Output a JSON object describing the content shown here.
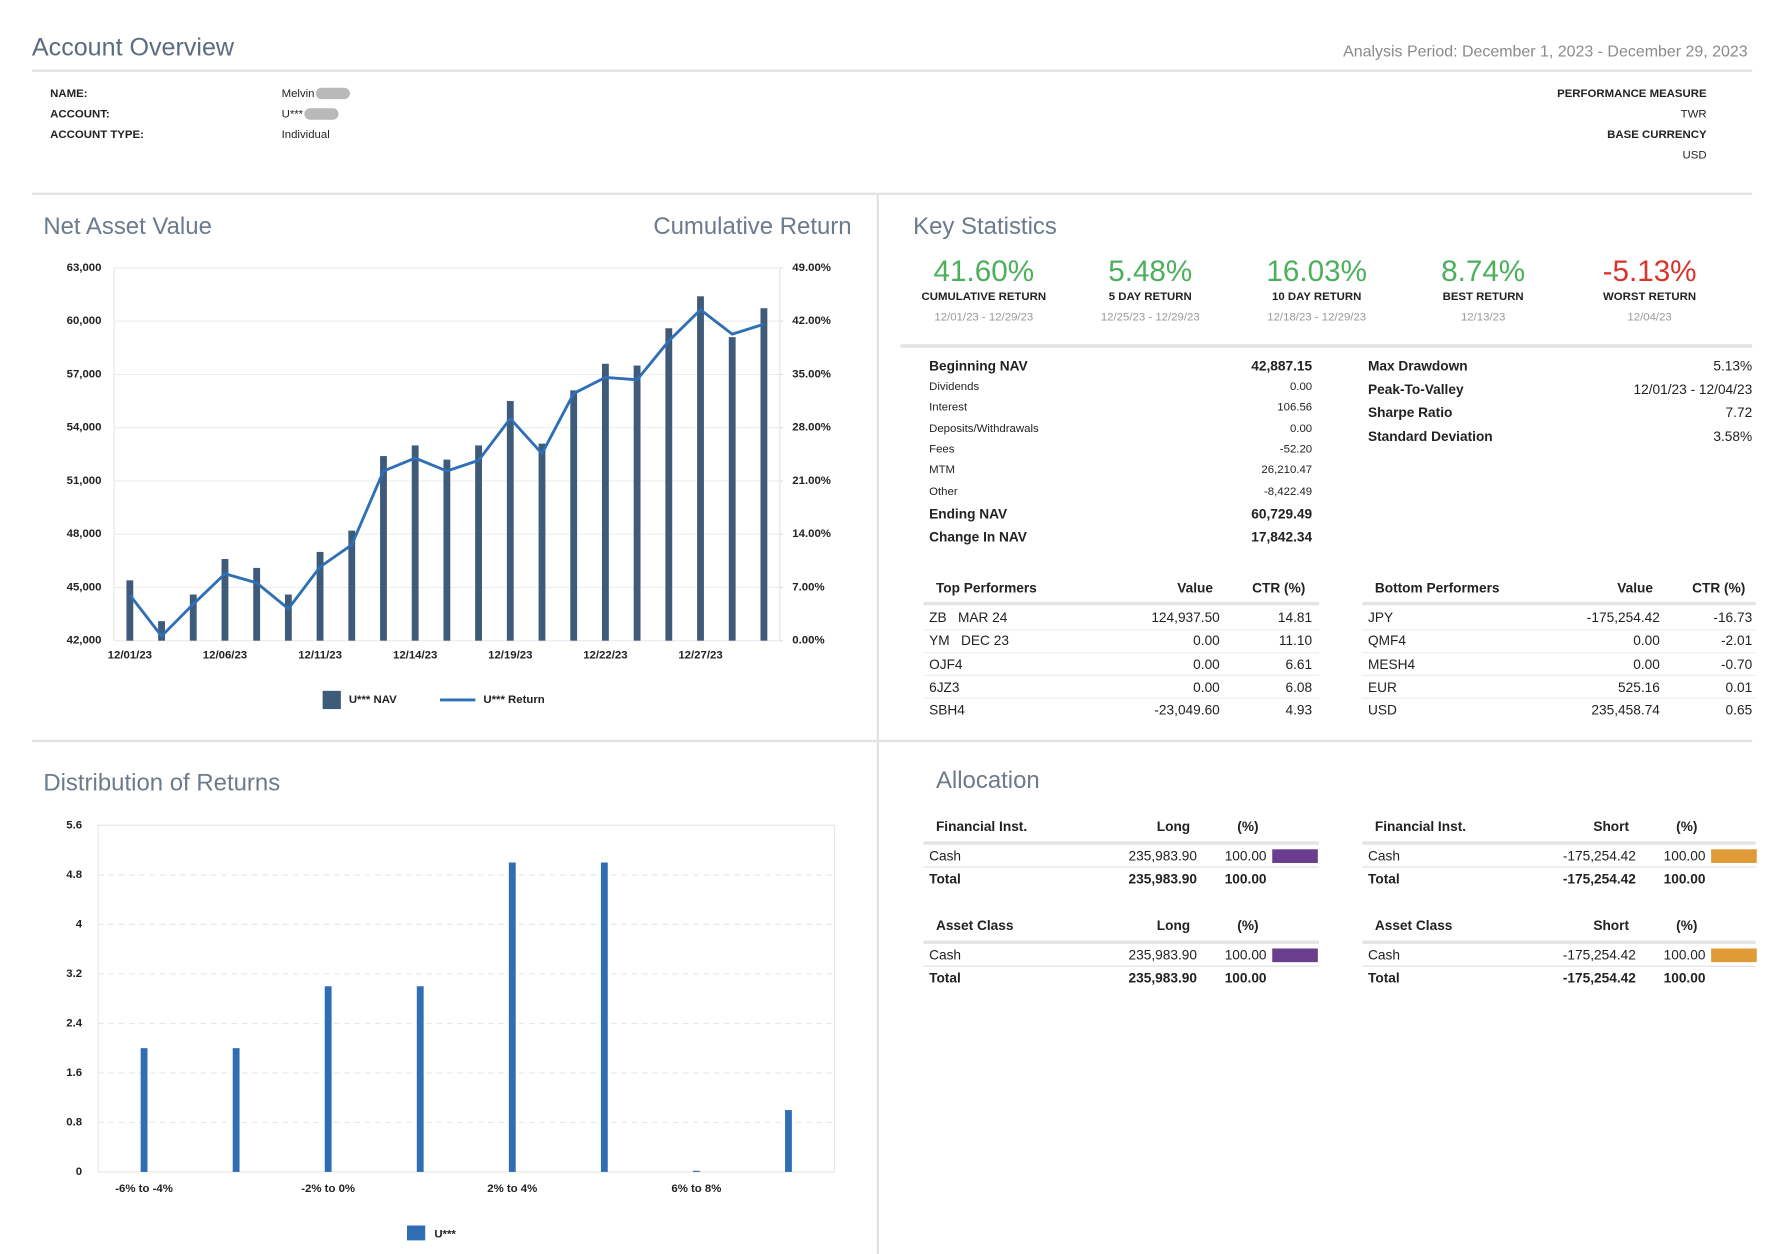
{
  "header": {
    "title": "Account Overview",
    "analysis_period": "Analysis Period: December 1, 2023 - December 29, 2023"
  },
  "account_info": {
    "fields": [
      {
        "label": "NAME:",
        "value": "Melvin"
      },
      {
        "label": "ACCOUNT:",
        "value": "U***"
      },
      {
        "label": "ACCOUNT TYPE:",
        "value": "Individual"
      }
    ],
    "right_fields": [
      {
        "label": "PERFORMANCE MEASURE",
        "value": "TWR"
      },
      {
        "label": "BASE CURRENCY",
        "value": "USD"
      }
    ]
  },
  "chart_data": [
    {
      "type": "bar_line",
      "title": "Net Asset Value",
      "y2_label": "Cumulative Return",
      "categories": [
        "12/01/23",
        null,
        null,
        "12/06/23",
        null,
        null,
        "12/11/23",
        null,
        null,
        "12/14/23",
        null,
        null,
        "12/19/23",
        null,
        null,
        "12/22/23",
        null,
        null,
        "12/27/23",
        null,
        null
      ],
      "series": [
        {
          "name": "U*** NAV",
          "color": "#3f5b7a",
          "values": [
            45400,
            43100,
            44600,
            46600,
            46100,
            44600,
            47000,
            48200,
            52400,
            53000,
            52200,
            53000,
            55500,
            53100,
            56100,
            57600,
            57500,
            59600,
            61400,
            59100,
            60729.49
          ]
        },
        {
          "name": "U*** Return",
          "color": "#2e6fb5",
          "axis": "y2",
          "values": [
            6.0,
            0.6,
            4.8,
            8.8,
            7.6,
            4.2,
            9.7,
            12.6,
            22.3,
            24.0,
            22.3,
            23.7,
            29.2,
            24.6,
            32.5,
            34.6,
            34.3,
            39.4,
            43.5,
            40.3,
            41.6
          ]
        }
      ],
      "ylim": [
        42000,
        63000
      ],
      "yticks": [
        {
          "value": 42000,
          "label": "42,000"
        },
        {
          "value": 45000,
          "label": "45,000"
        },
        {
          "value": 48000,
          "label": "48,000"
        },
        {
          "value": 51000,
          "label": "51,000"
        },
        {
          "value": 54000,
          "label": "54,000"
        },
        {
          "value": 57000,
          "label": "57,000"
        },
        {
          "value": 60000,
          "label": "60,000"
        },
        {
          "value": 63000,
          "label": "63,000"
        }
      ],
      "y2lim": [
        0,
        49
      ],
      "y2ticks": [
        {
          "value": 0,
          "label": "0.00%"
        },
        {
          "value": 7,
          "label": "7.00%"
        },
        {
          "value": 14,
          "label": "14.00%"
        },
        {
          "value": 21,
          "label": "21.00%"
        },
        {
          "value": 28,
          "label": "28.00%"
        },
        {
          "value": 35,
          "label": "35.00%"
        },
        {
          "value": 42,
          "label": "42.00%"
        },
        {
          "value": 49,
          "label": "49.00%"
        }
      ],
      "grid": true
    },
    {
      "type": "bar",
      "title": "Distribution of Returns",
      "categories": [
        "-6% to -4%",
        null,
        "-2% to 0%",
        null,
        "2% to 4%",
        null,
        "6% to 8%",
        null
      ],
      "series": [
        {
          "name": "U***",
          "color": "#2f6db5",
          "values": [
            2,
            2,
            3,
            3,
            5,
            5,
            0,
            1
          ]
        }
      ],
      "ylim": [
        0,
        5.6
      ],
      "yticks": [
        0,
        0.8,
        1.6,
        2.4,
        3.2,
        4,
        4.8,
        5.6
      ],
      "grid": true,
      "negative_label_color": "#e0531f",
      "positive_label_color": "#2e8b3e"
    }
  ],
  "key_statistics": {
    "title": "Key Statistics",
    "headline": [
      {
        "value": "41.60%",
        "label": "CUMULATIVE RETURN",
        "period": "12/01/23 - 12/29/23",
        "color": "#4caf5a"
      },
      {
        "value": "5.48%",
        "label": "5 DAY RETURN",
        "period": "12/25/23 - 12/29/23",
        "color": "#4caf5a"
      },
      {
        "value": "16.03%",
        "label": "10 DAY RETURN",
        "period": "12/18/23 - 12/29/23",
        "color": "#4caf5a"
      },
      {
        "value": "8.74%",
        "label": "BEST RETURN",
        "period": "12/13/23",
        "color": "#4caf5a"
      },
      {
        "value": "-5.13%",
        "label": "WORST RETURN",
        "period": "12/04/23",
        "color": "#d9342b"
      }
    ],
    "nav_summary": [
      {
        "label": "Beginning NAV",
        "value": "42,887.15",
        "strong": true
      },
      {
        "label": "Dividends",
        "value": "0.00",
        "strong": false
      },
      {
        "label": "Interest",
        "value": "106.56",
        "strong": false
      },
      {
        "label": "Deposits/Withdrawals",
        "value": "0.00",
        "strong": false
      },
      {
        "label": "Fees",
        "value": "-52.20",
        "strong": false
      },
      {
        "label": "MTM",
        "value": "26,210.47",
        "strong": false
      },
      {
        "label": "Other",
        "value": "-8,422.49",
        "strong": false
      },
      {
        "label": "Ending NAV",
        "value": "60,729.49",
        "strong": true
      },
      {
        "label": "Change In NAV",
        "value": "17,842.34",
        "strong": true
      }
    ],
    "risk": [
      {
        "label": "Max Drawdown",
        "value": "5.13%"
      },
      {
        "label": "Peak-To-Valley",
        "value": "12/01/23 - 12/04/23"
      },
      {
        "label": "Sharpe Ratio",
        "value": "7.72"
      },
      {
        "label": "Standard Deviation",
        "value": "3.58%"
      }
    ],
    "top_performers": {
      "header": [
        "Top Performers",
        "Value",
        "CTR (%)"
      ],
      "rows": [
        [
          "ZB   MAR 24",
          "124,937.50",
          "14.81"
        ],
        [
          "YM   DEC 23",
          "0.00",
          "11.10"
        ],
        [
          "OJF4",
          "0.00",
          "6.61"
        ],
        [
          "6JZ3",
          "0.00",
          "6.08"
        ],
        [
          "SBH4",
          "-23,049.60",
          "4.93"
        ]
      ]
    },
    "bottom_performers": {
      "header": [
        "Bottom Performers",
        "Value",
        "CTR (%)"
      ],
      "rows": [
        [
          "JPY",
          "-175,254.42",
          "-16.73"
        ],
        [
          "QMF4",
          "0.00",
          "-2.01"
        ],
        [
          "MESH4",
          "0.00",
          "-0.70"
        ],
        [
          "EUR",
          "525.16",
          "0.01"
        ],
        [
          "USD",
          "235,458.74",
          "0.65"
        ]
      ]
    }
  },
  "allocation": {
    "title": "Allocation",
    "tables": [
      {
        "header": [
          "Financial Inst.",
          "Long",
          "(%)"
        ],
        "rows": [
          [
            "Cash",
            "235,983.90",
            "100.00"
          ],
          [
            "Total",
            "235,983.90",
            "100.00"
          ]
        ],
        "bar_color": "#6a3d8f"
      },
      {
        "header": [
          "Financial Inst.",
          "Short",
          "(%)"
        ],
        "rows": [
          [
            "Cash",
            "-175,254.42",
            "100.00"
          ],
          [
            "Total",
            "-175,254.42",
            "100.00"
          ]
        ],
        "bar_color": "#e09a36"
      },
      {
        "header": [
          "Asset Class",
          "Long",
          "(%)"
        ],
        "rows": [
          [
            "Cash",
            "235,983.90",
            "100.00"
          ],
          [
            "Total",
            "235,983.90",
            "100.00"
          ]
        ],
        "bar_color": "#6a3d8f"
      },
      {
        "header": [
          "Asset Class",
          "Short",
          "(%)"
        ],
        "rows": [
          [
            "Cash",
            "-175,254.42",
            "100.00"
          ],
          [
            "Total",
            "-175,254.42",
            "100.00"
          ]
        ],
        "bar_color": "#e09a36"
      }
    ]
  }
}
